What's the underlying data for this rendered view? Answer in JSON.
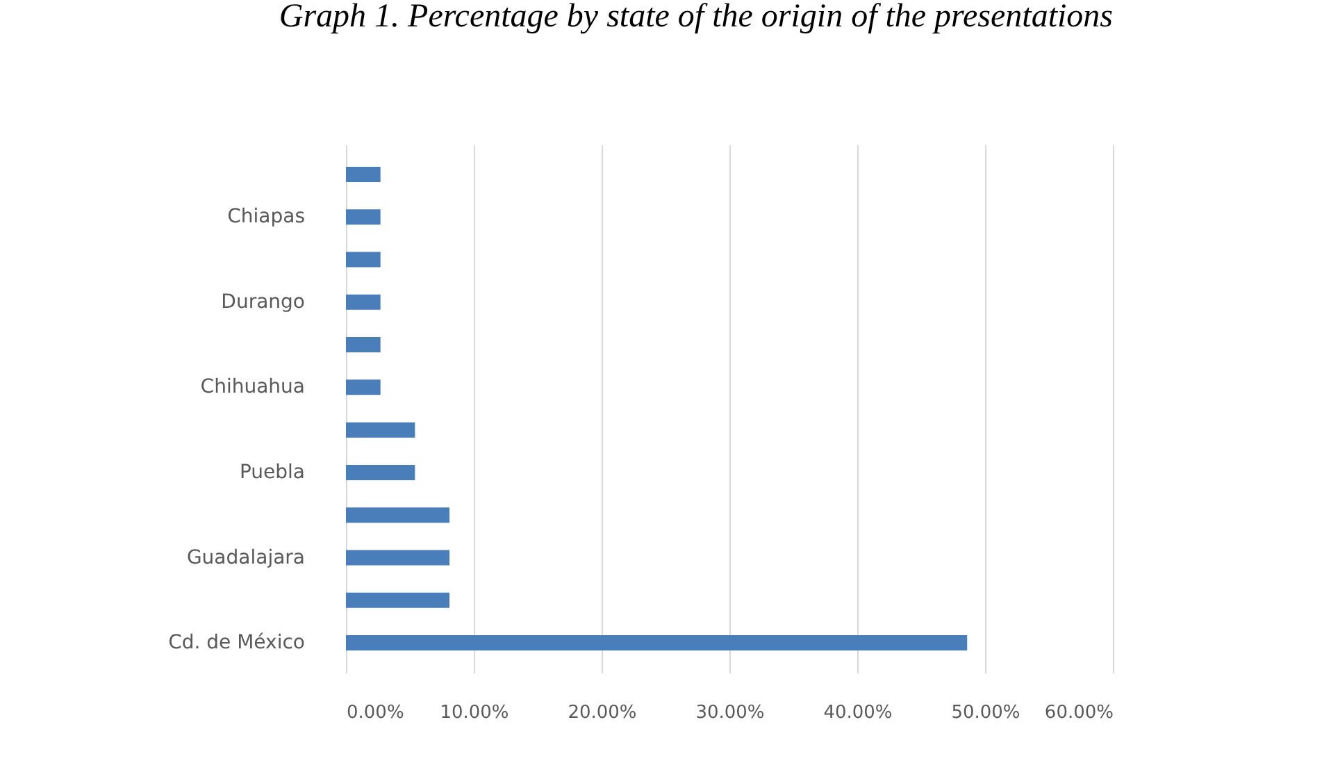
{
  "chart_data": {
    "type": "bar",
    "orientation": "horizontal",
    "title": "Graph 1. Percentage by state of the origin of the presentations",
    "categories": [
      null,
      "Chiapas",
      null,
      "Durango",
      null,
      "Chihuahua",
      null,
      "Puebla",
      null,
      "Guadalajara",
      null,
      "Cd. de México"
    ],
    "values": [
      2.7,
      2.7,
      2.7,
      2.7,
      2.7,
      2.7,
      5.4,
      5.4,
      8.1,
      8.1,
      8.1,
      48.6
    ],
    "color": "#4a7ebb",
    "xlim": [
      0,
      60
    ],
    "xticks": [
      {
        "value": 0,
        "label": "0.00%"
      },
      {
        "value": 10,
        "label": "10.00%"
      },
      {
        "value": 20,
        "label": "20.00%"
      },
      {
        "value": 30,
        "label": "30.00%"
      },
      {
        "value": 40,
        "label": "40.00%"
      },
      {
        "value": 50,
        "label": "50.00%"
      },
      {
        "value": 60,
        "label": "60.00%"
      }
    ],
    "grid": "x"
  }
}
